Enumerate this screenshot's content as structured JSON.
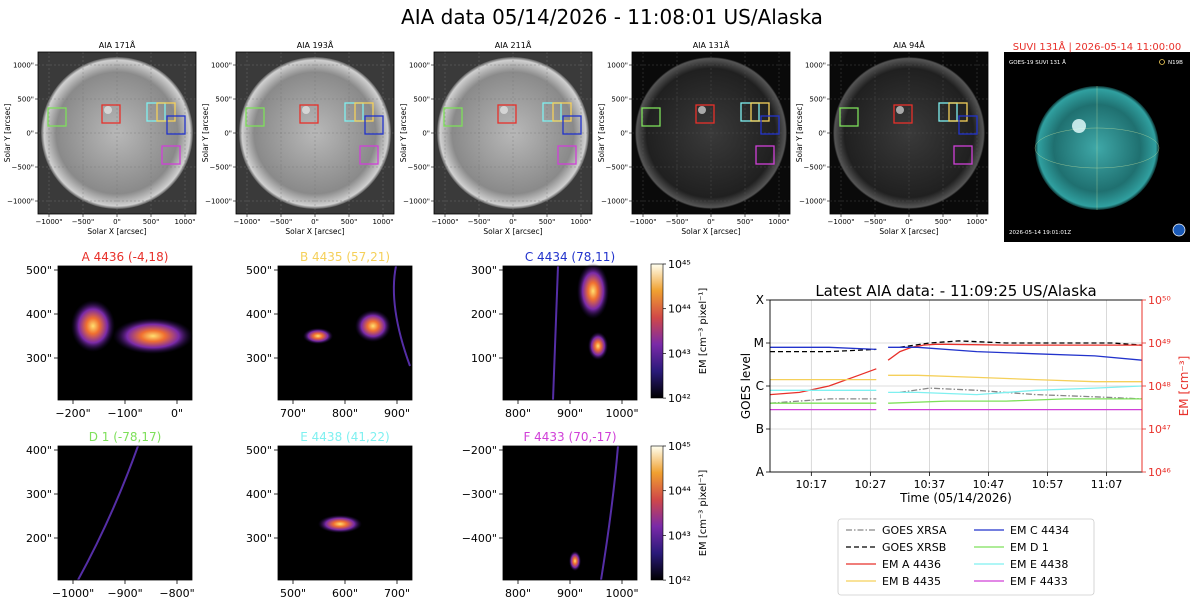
{
  "title": "AIA data 05/14/2026 - 11:08:01 US/Alaska",
  "colors": {
    "A": "#e8302a",
    "B": "#f5d05a",
    "C": "#2233cc",
    "D": "#7ee05a",
    "E": "#7ff0f0",
    "F": "#d040d8",
    "em_axis": "#e8302a",
    "grid": "#d0d0d0"
  },
  "aia_panels": [
    {
      "label": "AIA 171Å",
      "xlabel": "Solar X [arcsec]",
      "ylabel": "Solar Y [arcsec]",
      "shade": "#9a9a9a",
      "xticks": [
        "−1000\"",
        "−500\"",
        "0\"",
        "500\"",
        "1000\""
      ],
      "yticks": [
        "1000\"",
        "500\"",
        "0\"",
        "−500\"",
        "−1000\""
      ]
    },
    {
      "label": "AIA 193Å",
      "xlabel": "Solar X [arcsec]",
      "ylabel": "Solar Y [arcsec]",
      "shade": "#8e8e8e",
      "xticks": [
        "−1000\"",
        "−500\"",
        "0\"",
        "500\"",
        "1000\""
      ],
      "yticks": [
        "1000\"",
        "500\"",
        "0\"",
        "−500\"",
        "−1000\""
      ]
    },
    {
      "label": "AIA 211Å",
      "xlabel": "Solar X [arcsec]",
      "ylabel": "Solar Y [arcsec]",
      "shade": "#6e6e6e",
      "xticks": [
        "−1000\"",
        "−500\"",
        "0\"",
        "500\"",
        "1000\""
      ],
      "yticks": [
        "1000\"",
        "500\"",
        "0\"",
        "−500\"",
        "−1000\""
      ]
    },
    {
      "label": "AIA 131Å",
      "xlabel": "Solar X [arcsec]",
      "ylabel": "Solar Y [arcsec]",
      "shade": "#2a2a2a",
      "xticks": [
        "−1000\"",
        "−500\"",
        "0\"",
        "500\"",
        "1000\""
      ],
      "yticks": [
        "1000\"",
        "500\"",
        "0\"",
        "−500\"",
        "−1000\""
      ]
    },
    {
      "label": "AIA 94Å",
      "xlabel": "Solar X [arcsec]",
      "ylabel": "Solar Y [arcsec]",
      "shade": "#222222",
      "xticks": [
        "−1000\"",
        "−500\"",
        "0\"",
        "500\"",
        "1000\""
      ],
      "yticks": [
        "1000\"",
        "500\"",
        "0\"",
        "−500\"",
        "−1000\""
      ]
    }
  ],
  "suvi": {
    "title": "SUVI 131Å | 2026-05-14 11:00:00",
    "corner_label": "GOES-19 SUVI 131 Å",
    "legend": "N19B",
    "timestamp": "2026-05-14 19:01:01Z"
  },
  "em_panels": [
    {
      "key": "A",
      "title": "A 4436 (-4,18)",
      "xticks": [
        "−200\"",
        "−100\"",
        "0\""
      ],
      "yticks": [
        "500\"",
        "400\"",
        "300\""
      ]
    },
    {
      "key": "B",
      "title": "B 4435 (57,21)",
      "xticks": [
        "700\"",
        "800\"",
        "900\""
      ],
      "yticks": [
        "500\"",
        "400\"",
        "300\""
      ]
    },
    {
      "key": "C",
      "title": "C 4434 (78,11)",
      "xticks": [
        "800\"",
        "900\"",
        "1000\""
      ],
      "yticks": [
        "300\"",
        "200\"",
        "100\""
      ]
    },
    {
      "key": "D",
      "title": "D 1 (-78,17)",
      "xticks": [
        "−1000\"",
        "−900\"",
        "−800\""
      ],
      "yticks": [
        "400\"",
        "300\"",
        "200\""
      ]
    },
    {
      "key": "E",
      "title": "E 4438 (41,22)",
      "xticks": [
        "500\"",
        "600\"",
        "700\""
      ],
      "yticks": [
        "500\"",
        "400\"",
        "300\""
      ]
    },
    {
      "key": "F",
      "title": "F 4433 (70,-17)",
      "xticks": [
        "800\"",
        "900\"",
        "1000\""
      ],
      "yticks": [
        "−200\"",
        "−300\"",
        "−400\""
      ]
    }
  ],
  "colorbar": {
    "label": "EM [cm⁻³ pixel⁻¹]",
    "ticks": [
      "10⁴⁵",
      "10⁴⁴",
      "10⁴³",
      "10⁴²"
    ]
  },
  "chart_data": {
    "type": "line",
    "title": "Latest AIA data: - 11:09:25 US/Alaska",
    "xlabel": "Time (05/14/2026)",
    "ylabel": "GOES level",
    "ylabel_right": "EM [cm⁻³]",
    "x_ticks": [
      "10:17",
      "10:27",
      "10:37",
      "10:47",
      "10:57",
      "11:07"
    ],
    "xlim_minutes": [
      0,
      63
    ],
    "x_tick_minutes": [
      7,
      17,
      27,
      37,
      47,
      57
    ],
    "left_ticks": [
      "X",
      "M",
      "C",
      "B",
      "A"
    ],
    "right_ticks": [
      "10⁵⁰",
      "10⁴⁹",
      "10⁴⁸",
      "10⁴⁷",
      "10⁴⁶"
    ],
    "ylim_log_em": [
      46,
      50
    ],
    "gap_minute": 18.2,
    "grid": true,
    "legend_location": "bottom",
    "series": [
      {
        "name": "GOES XRSA",
        "key": "XRSA",
        "style": "dashdot",
        "color": "#888888",
        "x": [
          0,
          10,
          18,
          22,
          27,
          35,
          45,
          55,
          63
        ],
        "y": [
          47.6,
          47.7,
          47.7,
          47.85,
          47.95,
          47.9,
          47.8,
          47.75,
          47.7
        ]
      },
      {
        "name": "GOES XRSB",
        "key": "XRSB",
        "style": "dashed",
        "color": "#000000",
        "x": [
          0,
          10,
          18,
          22,
          27,
          32,
          40,
          50,
          58,
          63
        ],
        "y": [
          48.8,
          48.8,
          48.85,
          48.9,
          49.0,
          49.05,
          49.0,
          49.0,
          49.0,
          48.95
        ]
      },
      {
        "name": "EM A 4436",
        "key": "A",
        "style": "solid",
        "color": "#e8302a",
        "x": [
          0,
          5,
          10,
          15,
          18,
          20,
          22,
          24,
          26,
          28,
          30,
          40,
          55,
          63
        ],
        "y": [
          47.8,
          47.85,
          48.0,
          48.25,
          48.4,
          48.6,
          48.8,
          48.9,
          48.95,
          48.97,
          48.97,
          48.95,
          48.95,
          48.95
        ]
      },
      {
        "name": "EM B 4435",
        "key": "B",
        "style": "solid",
        "color": "#f5d05a",
        "x": [
          0,
          10,
          18,
          20,
          25,
          35,
          45,
          55,
          63
        ],
        "y": [
          48.15,
          48.15,
          48.15,
          48.25,
          48.25,
          48.2,
          48.15,
          48.1,
          48.1
        ]
      },
      {
        "name": "EM C 4434",
        "key": "C",
        "style": "solid",
        "color": "#2233cc",
        "x": [
          0,
          10,
          18,
          20,
          25,
          35,
          45,
          55,
          63
        ],
        "y": [
          48.9,
          48.9,
          48.85,
          48.9,
          48.9,
          48.8,
          48.75,
          48.7,
          48.6
        ]
      },
      {
        "name": "EM D 1",
        "key": "D",
        "style": "solid",
        "color": "#7ee05a",
        "x": [
          0,
          10,
          18,
          20,
          30,
          40,
          50,
          63
        ],
        "y": [
          47.6,
          47.6,
          47.6,
          47.6,
          47.65,
          47.65,
          47.7,
          47.7
        ]
      },
      {
        "name": "EM E 4438",
        "key": "E",
        "style": "solid",
        "color": "#7ff0f0",
        "x": [
          0,
          10,
          18,
          20,
          25,
          35,
          45,
          55,
          63
        ],
        "y": [
          47.9,
          47.9,
          47.9,
          47.85,
          47.85,
          47.8,
          47.9,
          47.95,
          48.0
        ]
      },
      {
        "name": "EM F 4433",
        "key": "F",
        "style": "solid",
        "color": "#d040d8",
        "x": [
          0,
          10,
          18,
          20,
          30,
          40,
          50,
          63
        ],
        "y": [
          47.45,
          47.45,
          47.45,
          47.45,
          47.45,
          47.45,
          47.45,
          47.45
        ]
      }
    ]
  }
}
